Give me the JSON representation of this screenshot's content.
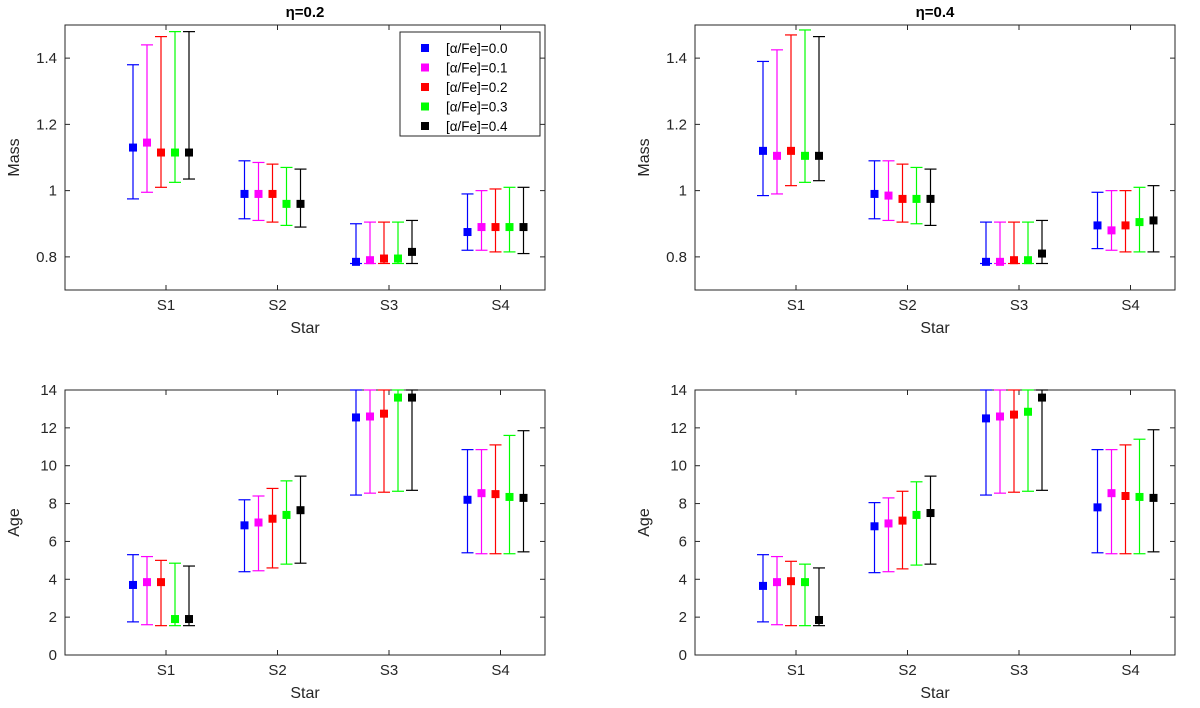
{
  "legend": {
    "entries": [
      "[α/Fe]=0.0",
      "[α/Fe]=0.1",
      "[α/Fe]=0.2",
      "[α/Fe]=0.3",
      "[α/Fe]=0.4"
    ],
    "colors": [
      "#0000ff",
      "#ff00ff",
      "#ff0000",
      "#00ff00",
      "#000000"
    ]
  },
  "chart_data": [
    {
      "type": "scatter",
      "title": "η=0.2",
      "xlabel": "Star",
      "ylabel": "Mass",
      "categories": [
        "S1",
        "S2",
        "S3",
        "S4"
      ],
      "ylim": [
        0.7,
        1.5
      ],
      "yticks": [
        "0.8",
        "1",
        "1.2",
        "1.4"
      ],
      "series": [
        {
          "name": "[α/Fe]=0.0",
          "values": [
            1.13,
            0.99,
            0.785,
            0.875
          ],
          "lower": [
            0.975,
            0.915,
            0.78,
            0.82
          ],
          "upper": [
            1.38,
            1.09,
            0.9,
            0.99
          ]
        },
        {
          "name": "[α/Fe]=0.1",
          "values": [
            1.145,
            0.99,
            0.79,
            0.89
          ],
          "lower": [
            0.995,
            0.91,
            0.78,
            0.82
          ],
          "upper": [
            1.44,
            1.085,
            0.905,
            1.0
          ]
        },
        {
          "name": "[α/Fe]=0.2",
          "values": [
            1.115,
            0.99,
            0.795,
            0.89
          ],
          "lower": [
            1.01,
            0.905,
            0.78,
            0.815
          ],
          "upper": [
            1.465,
            1.08,
            0.905,
            1.005
          ]
        },
        {
          "name": "[α/Fe]=0.3",
          "values": [
            1.115,
            0.96,
            0.795,
            0.89
          ],
          "lower": [
            1.025,
            0.895,
            0.78,
            0.815
          ],
          "upper": [
            1.48,
            1.07,
            0.905,
            1.01
          ]
        },
        {
          "name": "[α/Fe]=0.4",
          "values": [
            1.115,
            0.96,
            0.815,
            0.89
          ],
          "lower": [
            1.035,
            0.89,
            0.78,
            0.81
          ],
          "upper": [
            1.48,
            1.065,
            0.91,
            1.01
          ]
        }
      ]
    },
    {
      "type": "scatter",
      "title": "η=0.4",
      "xlabel": "Star",
      "ylabel": "Mass",
      "categories": [
        "S1",
        "S2",
        "S3",
        "S4"
      ],
      "ylim": [
        0.7,
        1.5
      ],
      "yticks": [
        "0.8",
        "1",
        "1.2",
        "1.4"
      ],
      "series": [
        {
          "name": "[α/Fe]=0.0",
          "values": [
            1.12,
            0.99,
            0.785,
            0.895
          ],
          "lower": [
            0.985,
            0.915,
            0.78,
            0.825
          ],
          "upper": [
            1.39,
            1.09,
            0.905,
            0.995
          ]
        },
        {
          "name": "[α/Fe]=0.1",
          "values": [
            1.105,
            0.985,
            0.785,
            0.88
          ],
          "lower": [
            0.99,
            0.91,
            0.78,
            0.82
          ],
          "upper": [
            1.425,
            1.09,
            0.905,
            1.0
          ]
        },
        {
          "name": "[α/Fe]=0.2",
          "values": [
            1.12,
            0.975,
            0.79,
            0.895
          ],
          "lower": [
            1.015,
            0.905,
            0.78,
            0.815
          ],
          "upper": [
            1.47,
            1.08,
            0.905,
            1.0
          ]
        },
        {
          "name": "[α/Fe]=0.3",
          "values": [
            1.105,
            0.975,
            0.79,
            0.905
          ],
          "lower": [
            1.025,
            0.9,
            0.78,
            0.815
          ],
          "upper": [
            1.485,
            1.07,
            0.905,
            1.01
          ]
        },
        {
          "name": "[α/Fe]=0.4",
          "values": [
            1.105,
            0.975,
            0.81,
            0.91
          ],
          "lower": [
            1.03,
            0.895,
            0.78,
            0.815
          ],
          "upper": [
            1.465,
            1.065,
            0.91,
            1.015
          ]
        }
      ]
    },
    {
      "type": "scatter",
      "title": "",
      "xlabel": "Star",
      "ylabel": "Age",
      "categories": [
        "S1",
        "S2",
        "S3",
        "S4"
      ],
      "ylim": [
        0,
        14
      ],
      "yticks": [
        "0",
        "2",
        "4",
        "6",
        "8",
        "10",
        "12",
        "14"
      ],
      "series": [
        {
          "name": "[α/Fe]=0.0",
          "values": [
            3.7,
            6.85,
            12.55,
            8.2
          ],
          "lower": [
            1.75,
            4.4,
            8.45,
            5.4
          ],
          "upper": [
            5.3,
            8.2,
            14.0,
            10.85
          ]
        },
        {
          "name": "[α/Fe]=0.1",
          "values": [
            3.85,
            7.0,
            12.6,
            8.55
          ],
          "lower": [
            1.6,
            4.45,
            8.55,
            5.35
          ],
          "upper": [
            5.2,
            8.4,
            14.0,
            10.85
          ]
        },
        {
          "name": "[α/Fe]=0.2",
          "values": [
            3.85,
            7.2,
            12.75,
            8.5
          ],
          "lower": [
            1.55,
            4.6,
            8.6,
            5.35
          ],
          "upper": [
            5.0,
            8.8,
            14.0,
            11.1
          ]
        },
        {
          "name": "[α/Fe]=0.3",
          "values": [
            1.9,
            7.4,
            13.6,
            8.35
          ],
          "lower": [
            1.55,
            4.8,
            8.65,
            5.35
          ],
          "upper": [
            4.85,
            9.2,
            14.0,
            11.6
          ]
        },
        {
          "name": "[α/Fe]=0.4",
          "values": [
            1.9,
            7.65,
            13.6,
            8.3
          ],
          "lower": [
            1.55,
            4.85,
            8.7,
            5.45
          ],
          "upper": [
            4.7,
            9.45,
            14.0,
            11.85
          ]
        }
      ]
    },
    {
      "type": "scatter",
      "title": "",
      "xlabel": "Star",
      "ylabel": "Age",
      "categories": [
        "S1",
        "S2",
        "S3",
        "S4"
      ],
      "ylim": [
        0,
        14
      ],
      "yticks": [
        "0",
        "2",
        "4",
        "6",
        "8",
        "10",
        "12",
        "14"
      ],
      "series": [
        {
          "name": "[α/Fe]=0.0",
          "values": [
            3.65,
            6.8,
            12.5,
            7.8
          ],
          "lower": [
            1.75,
            4.35,
            8.45,
            5.4
          ],
          "upper": [
            5.3,
            8.05,
            14.0,
            10.85
          ]
        },
        {
          "name": "[α/Fe]=0.1",
          "values": [
            3.85,
            6.95,
            12.6,
            8.55
          ],
          "lower": [
            1.6,
            4.4,
            8.55,
            5.35
          ],
          "upper": [
            5.2,
            8.3,
            14.0,
            10.85
          ]
        },
        {
          "name": "[α/Fe]=0.2",
          "values": [
            3.9,
            7.1,
            12.7,
            8.4
          ],
          "lower": [
            1.55,
            4.55,
            8.6,
            5.35
          ],
          "upper": [
            4.95,
            8.65,
            14.0,
            11.1
          ]
        },
        {
          "name": "[α/Fe]=0.3",
          "values": [
            3.85,
            7.4,
            12.85,
            8.35
          ],
          "lower": [
            1.55,
            4.75,
            8.65,
            5.35
          ],
          "upper": [
            4.8,
            9.15,
            14.0,
            11.4
          ]
        },
        {
          "name": "[α/Fe]=0.4",
          "values": [
            1.85,
            7.5,
            13.6,
            8.3
          ],
          "lower": [
            1.55,
            4.8,
            8.7,
            5.45
          ],
          "upper": [
            4.6,
            9.45,
            14.0,
            11.9
          ]
        }
      ]
    }
  ]
}
